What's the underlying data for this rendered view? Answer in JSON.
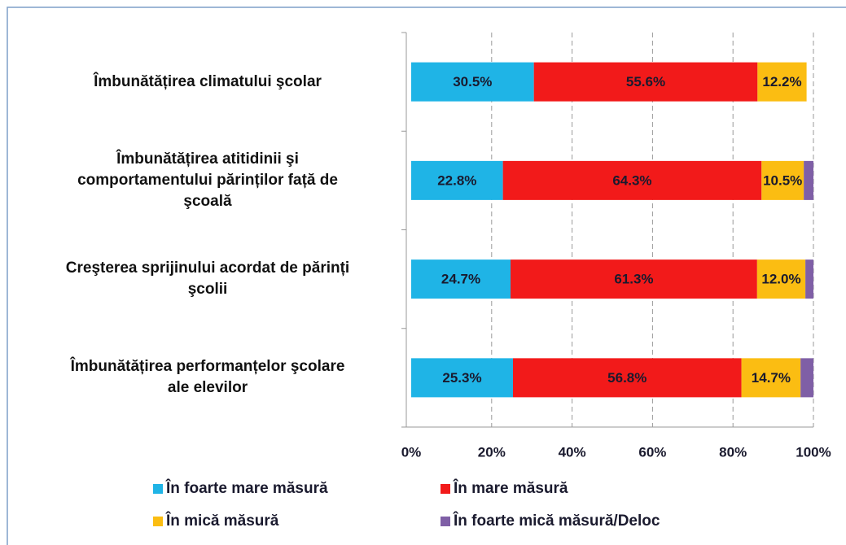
{
  "chart_data": {
    "type": "stacked-bar-horizontal",
    "categories": [
      "Îmbunătățirea climatului şcolar",
      "Îmbunătățirea atitidinii şi\ncomportamentului părinților față de\nşcoală",
      "Creşterea sprijinului acordat de părinți\nşcolii",
      "Îmbunătățirea performanțelor şcolare\nale elevilor"
    ],
    "series": [
      {
        "name": "În foarte mare măsură",
        "color": "#1fb4e6",
        "values": [
          30.5,
          22.8,
          24.7,
          25.3
        ],
        "value_labels": [
          "30.5%",
          "22.8%",
          "24.7%",
          "25.3%"
        ]
      },
      {
        "name": "În mare măsură",
        "color": "#f21a1a",
        "values": [
          55.6,
          64.3,
          61.3,
          56.8
        ],
        "value_labels": [
          "55.6%",
          "64.3%",
          "61.3%",
          "56.8%"
        ]
      },
      {
        "name": "În mică măsură",
        "color": "#fbbd12",
        "values": [
          12.2,
          10.5,
          12.0,
          14.7
        ],
        "value_labels": [
          "12.2%",
          "10.5%",
          "12.0%",
          "14.7%"
        ]
      },
      {
        "name": "În foarte mică măsură/Deloc",
        "color": "#7f5fa6",
        "values": [
          null,
          2.4,
          2.0,
          3.2
        ]
      }
    ],
    "xlim": [
      0,
      100
    ],
    "xticks": [
      {
        "value": 0,
        "label": "0%"
      },
      {
        "value": 20,
        "label": "20%"
      },
      {
        "value": 40,
        "label": "40%"
      },
      {
        "value": 60,
        "label": "60%"
      },
      {
        "value": 80,
        "label": "80%"
      },
      {
        "value": 100,
        "label": "100%"
      }
    ],
    "grid": true
  }
}
